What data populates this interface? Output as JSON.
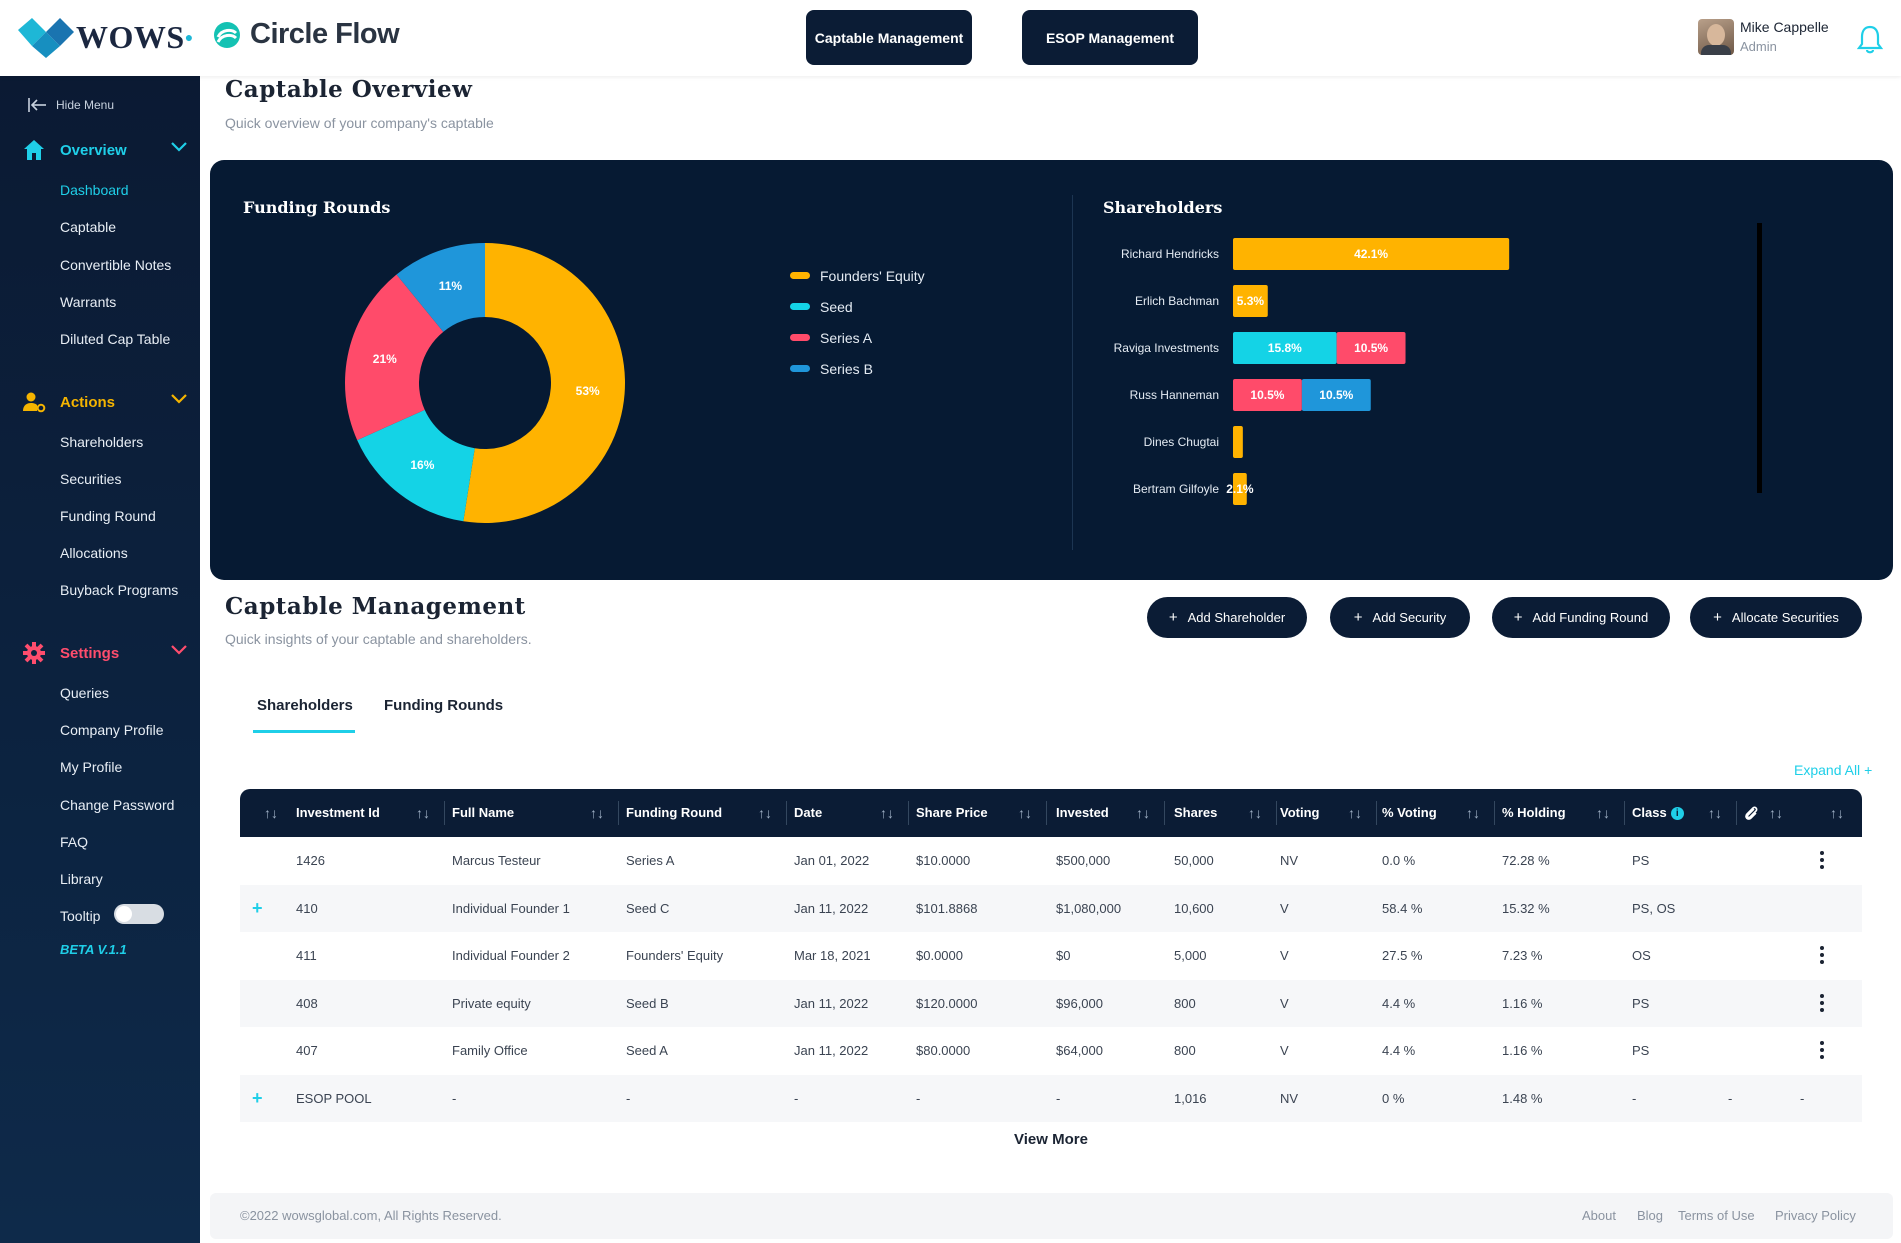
{
  "header": {
    "brand": "WOWS",
    "product": "Circle Flow",
    "nav_buttons": [
      "Captable Management",
      "ESOP Management"
    ],
    "user_name": "Mike Cappelle",
    "user_role": "Admin"
  },
  "sidebar": {
    "hide_menu": "Hide Menu",
    "sections": [
      {
        "label": "Overview",
        "color": "#1fcfe8",
        "icon": "home-icon",
        "items": [
          "Dashboard",
          "Captable",
          "Convertible Notes",
          "Warrants",
          "Diluted Cap Table"
        ],
        "active": "Dashboard"
      },
      {
        "label": "Actions",
        "color": "#f5b400",
        "icon": "user-gear-icon",
        "items": [
          "Shareholders",
          "Securities",
          "Funding Round",
          "Allocations",
          "Buyback Programs"
        ]
      },
      {
        "label": "Settings",
        "color": "#ff4d6d",
        "icon": "gear-icon",
        "items": [
          "Queries",
          "Company Profile",
          "My Profile",
          "Change Password",
          "FAQ",
          "Library",
          "Tooltip"
        ]
      }
    ],
    "version": "BETA V.1.1"
  },
  "overview": {
    "title": "Captable Overview",
    "subtitle": "Quick overview of your company's captable",
    "funding_title": "Funding Rounds",
    "shareholders_title": "Shareholders"
  },
  "chart_data": [
    {
      "type": "pie",
      "title": "Funding Rounds",
      "labels": [
        "Founders' Equity",
        "Seed",
        "Series A",
        "Series B"
      ],
      "values": [
        53,
        16,
        21,
        11
      ],
      "display_labels": [
        "53%",
        "16%",
        "21%",
        "11%"
      ],
      "colors": [
        "#ffb300",
        "#14d3e6",
        "#ff4b6a",
        "#1f96da"
      ],
      "donut": true,
      "legend": "right"
    },
    {
      "type": "bar",
      "orientation": "horizontal",
      "stacked": true,
      "title": "Shareholders",
      "categories": [
        "Richard Hendricks",
        "Erlich Bachman",
        "Raviga Investments",
        "Russ Hanneman",
        "Dines Chugtai",
        "Bertram Gilfoyle"
      ],
      "series": [
        {
          "color": "#ffb300",
          "values": [
            42.1,
            5.3,
            0,
            0,
            1.5,
            2.1
          ],
          "labels": [
            "42.1%",
            "5.3%",
            "",
            "",
            "",
            "2.1%"
          ]
        },
        {
          "color": "#14d3e6",
          "values": [
            0,
            0,
            15.8,
            0,
            0,
            0
          ],
          "labels": [
            "",
            "",
            "15.8%",
            "",
            "",
            ""
          ]
        },
        {
          "color": "#ff4b6a",
          "values": [
            0,
            0,
            10.5,
            10.5,
            0,
            0
          ],
          "labels": [
            "",
            "",
            "10.5%",
            "10.5%",
            "",
            ""
          ]
        },
        {
          "color": "#1f96da",
          "values": [
            0,
            0,
            0,
            10.5,
            0,
            0
          ],
          "labels": [
            "",
            "",
            "",
            "10.5%",
            "",
            ""
          ]
        }
      ],
      "xlim": [
        0,
        65
      ]
    }
  ],
  "management": {
    "title": "Captable Management",
    "subtitle": "Quick insights of your captable and shareholders.",
    "buttons": [
      "Add Shareholder",
      "Add Security",
      "Add Funding Round",
      "Allocate Securities"
    ],
    "tabs": [
      "Shareholders",
      "Funding Rounds"
    ],
    "expand_all": "Expand All",
    "columns": [
      "Investment Id",
      "Full Name",
      "Funding Round",
      "Date",
      "Share Price",
      "Invested",
      "Shares",
      "Voting",
      "% Voting",
      "% Holding",
      "Class"
    ],
    "rows": [
      {
        "expand": false,
        "menu": true,
        "cells": [
          "1426",
          "Marcus Testeur",
          "Series A",
          "Jan 01, 2022",
          "$10.0000",
          "$500,000",
          "50,000",
          "NV",
          "0.0 %",
          "72.28 %",
          "PS"
        ],
        "extra": [
          "",
          ""
        ]
      },
      {
        "expand": true,
        "menu": false,
        "cells": [
          "410",
          "Individual Founder 1",
          "Seed C",
          "Jan 11, 2022",
          "$101.8868",
          "$1,080,000",
          "10,600",
          "V",
          "58.4 %",
          "15.32 %",
          "PS, OS"
        ],
        "extra": [
          "",
          ""
        ]
      },
      {
        "expand": false,
        "menu": true,
        "cells": [
          "411",
          "Individual Founder 2",
          "Founders' Equity",
          "Mar 18, 2021",
          "$0.0000",
          "$0",
          "5,000",
          "V",
          "27.5 %",
          "7.23 %",
          "OS"
        ],
        "extra": [
          "",
          ""
        ]
      },
      {
        "expand": false,
        "menu": true,
        "cells": [
          "408",
          "Private equity",
          "Seed B",
          "Jan 11, 2022",
          "$120.0000",
          "$96,000",
          "800",
          "V",
          "4.4 %",
          "1.16 %",
          "PS"
        ],
        "extra": [
          "",
          ""
        ]
      },
      {
        "expand": false,
        "menu": true,
        "cells": [
          "407",
          "Family Office",
          "Seed A",
          "Jan 11, 2022",
          "$80.0000",
          "$64,000",
          "800",
          "V",
          "4.4 %",
          "1.16 %",
          "PS"
        ],
        "extra": [
          "",
          ""
        ]
      },
      {
        "expand": true,
        "menu": false,
        "cells": [
          "ESOP POOL",
          "-",
          "-",
          "-",
          "-",
          "-",
          "1,016",
          "NV",
          "0 %",
          "1.48 %",
          "-"
        ],
        "extra": [
          "-",
          "-"
        ]
      }
    ],
    "view_more": "View More"
  },
  "footer": {
    "copyright": "©2022 wowsglobal.com, All Rights Reserved.",
    "links": [
      "About",
      "Blog",
      "Terms of Use",
      "Privacy Policy"
    ]
  }
}
